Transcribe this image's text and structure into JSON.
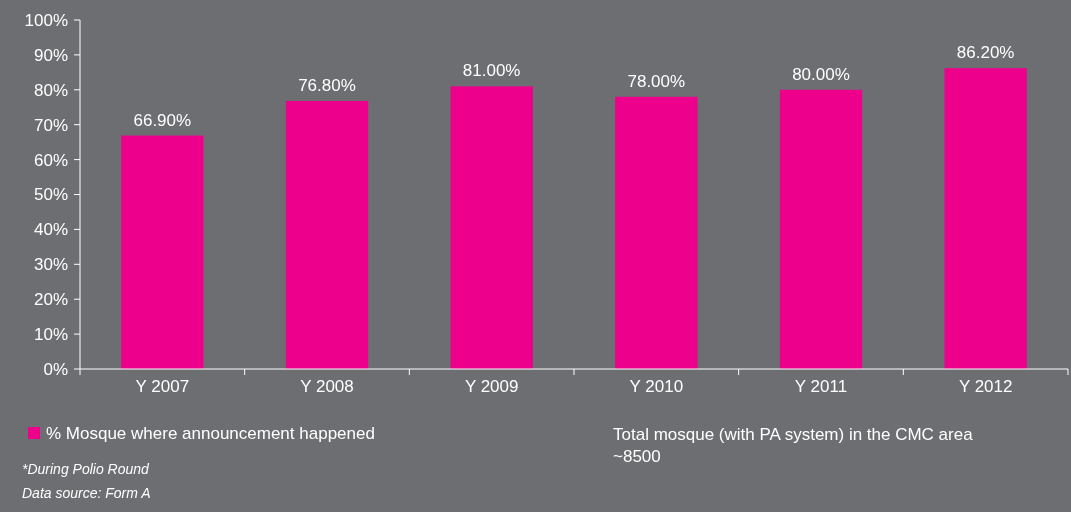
{
  "chart_data": {
    "type": "bar",
    "categories": [
      "Y 2007",
      "Y 2008",
      "Y 2009",
      "Y 2010",
      "Y 2011",
      "Y 2012"
    ],
    "series": [
      {
        "name": "% Mosque where announcement happened",
        "color": "#ec008c",
        "values": [
          66.9,
          76.8,
          81,
          78,
          80,
          86.2
        ],
        "value_labels": [
          "66.90%",
          "76.80%",
          "81.00%",
          "78.00%",
          "80.00%",
          "86.20%"
        ]
      }
    ],
    "ylim": [
      0,
      100
    ],
    "yticks": [
      {
        "value": 0,
        "label": "0%"
      },
      {
        "value": 10,
        "label": "10%"
      },
      {
        "value": 20,
        "label": "20%"
      },
      {
        "value": 30,
        "label": "30%"
      },
      {
        "value": 40,
        "label": "40%"
      },
      {
        "value": 50,
        "label": "50%"
      },
      {
        "value": 60,
        "label": "60%"
      },
      {
        "value": 70,
        "label": "70%"
      },
      {
        "value": 80,
        "label": "80%"
      },
      {
        "value": 90,
        "label": "90%"
      },
      {
        "value": 100,
        "label": "100%"
      }
    ],
    "grid": false,
    "legend": "bottom",
    "annotations": [
      "Total mosque (with PA system) in the CMC area",
      "~8500",
      "*During Polio Round",
      "Data source: Form A"
    ]
  }
}
